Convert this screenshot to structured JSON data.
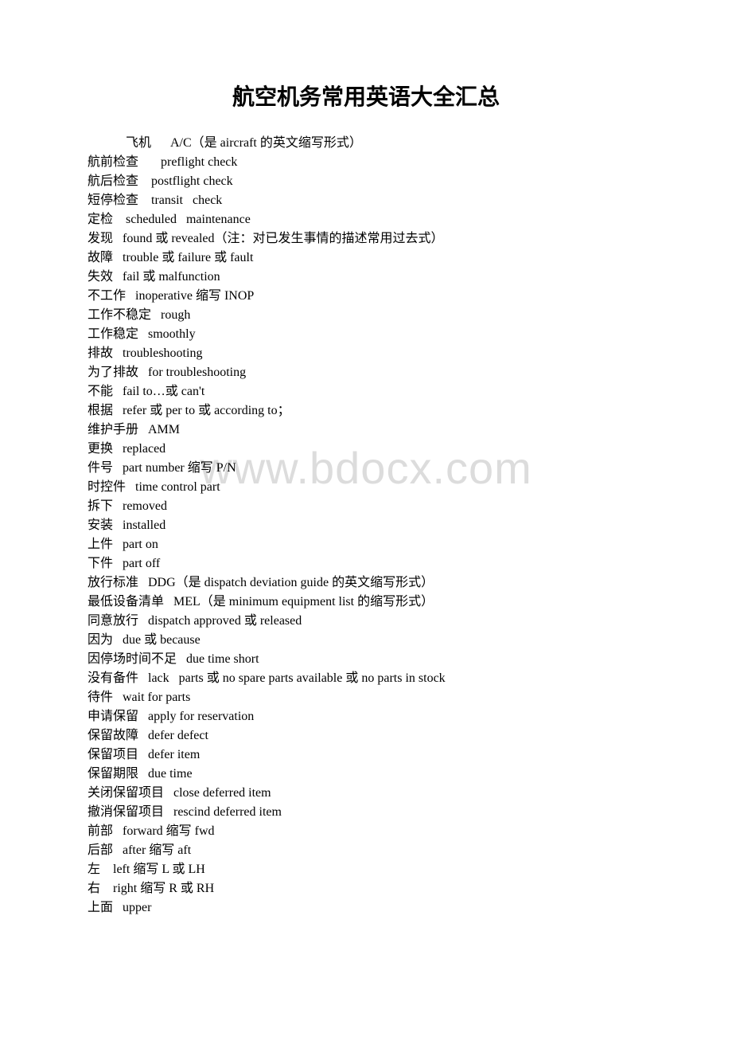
{
  "title": "航空机务常用英语大全汇总",
  "watermark": "www.bdocx.com",
  "lines": [
    {
      "text": "飞机      A/C（是 aircraft 的英文缩写形式）",
      "indent": true
    },
    {
      "text": "航前检查       preflight check"
    },
    {
      "text": "航后检查    postflight check"
    },
    {
      "text": "短停检查    transit   check"
    },
    {
      "text": "定检    scheduled   maintenance"
    },
    {
      "text": "发现   found 或 revealed（注：对已发生事情的描述常用过去式）"
    },
    {
      "text": "故障   trouble 或 failure 或 fault"
    },
    {
      "text": "失效   fail 或 malfunction"
    },
    {
      "text": "不工作   inoperative 缩写 INOP"
    },
    {
      "text": "工作不稳定   rough"
    },
    {
      "text": "工作稳定   smoothly"
    },
    {
      "text": "排故   troubleshooting"
    },
    {
      "text": "为了排故   for troubleshooting"
    },
    {
      "text": "不能   fail to…或 can't"
    },
    {
      "text": "根据   refer 或 per to 或 according to；"
    },
    {
      "text": "维护手册   AMM"
    },
    {
      "text": "更换   replaced"
    },
    {
      "text": "件号   part number 缩写 P/N"
    },
    {
      "text": "时控件   time control part"
    },
    {
      "text": "拆下   removed"
    },
    {
      "text": "安装   installed"
    },
    {
      "text": "上件   part on"
    },
    {
      "text": "下件   part off"
    },
    {
      "text": "放行标准   DDG（是 dispatch deviation guide 的英文缩写形式）"
    },
    {
      "text": "最低设备清单   MEL（是 minimum equipment list 的缩写形式）"
    },
    {
      "text": "同意放行   dispatch approved 或 released"
    },
    {
      "text": "因为   due 或 because"
    },
    {
      "text": "因停场时间不足   due time short"
    },
    {
      "text": "没有备件   lack   parts 或 no spare parts available 或 no parts in stock"
    },
    {
      "text": "待件   wait for parts"
    },
    {
      "text": "申请保留   apply for reservation"
    },
    {
      "text": "保留故障   defer defect"
    },
    {
      "text": "保留项目   defer item"
    },
    {
      "text": "保留期限   due time"
    },
    {
      "text": "关闭保留项目   close deferred item"
    },
    {
      "text": "撤消保留项目   rescind deferred item"
    },
    {
      "text": "前部   forward 缩写 fwd"
    },
    {
      "text": "后部   after 缩写 aft"
    },
    {
      "text": "左    left 缩写 L 或 LH"
    },
    {
      "text": "右    right 缩写 R 或 RH"
    },
    {
      "text": "上面   upper"
    }
  ]
}
